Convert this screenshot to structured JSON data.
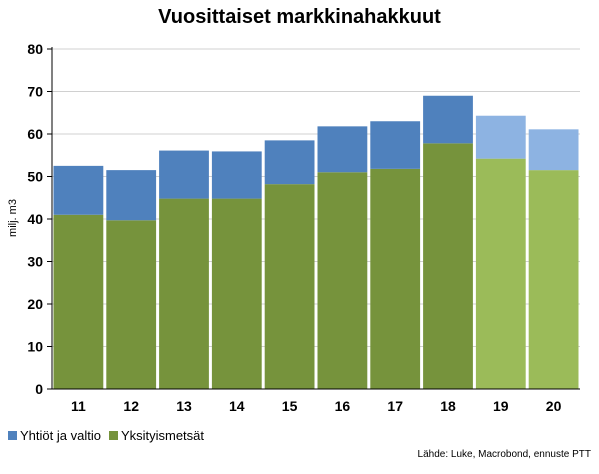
{
  "chart_data": {
    "type": "bar",
    "stacked": true,
    "title": "Vuosittaiset markkinahakkuut",
    "ylabel": "milj. m3",
    "xlabel": "",
    "ylim": [
      0,
      80
    ],
    "yticks": [
      0,
      10,
      20,
      30,
      40,
      50,
      60,
      70,
      80
    ],
    "grid": true,
    "legend_position": "bottom-left",
    "categories": [
      "11",
      "12",
      "13",
      "14",
      "15",
      "16",
      "17",
      "18",
      "19",
      "20"
    ],
    "forecast_categories": [
      "19",
      "20"
    ],
    "series": [
      {
        "name": "Yksityismetsät",
        "color": "#76933c",
        "forecast_color": "#9bbb59",
        "values": [
          41.0,
          39.7,
          44.8,
          44.8,
          48.2,
          51.0,
          51.8,
          57.8,
          54.2,
          51.5
        ]
      },
      {
        "name": "Yhtiöt ja valtio",
        "color": "#4f81bd",
        "forecast_color": "#8db3e2",
        "values": [
          11.5,
          11.8,
          11.3,
          11.1,
          10.3,
          10.8,
          11.2,
          11.2,
          10.1,
          9.6
        ]
      }
    ],
    "source": "Lähde: Luke, Macrobond, ennuste PTT"
  }
}
